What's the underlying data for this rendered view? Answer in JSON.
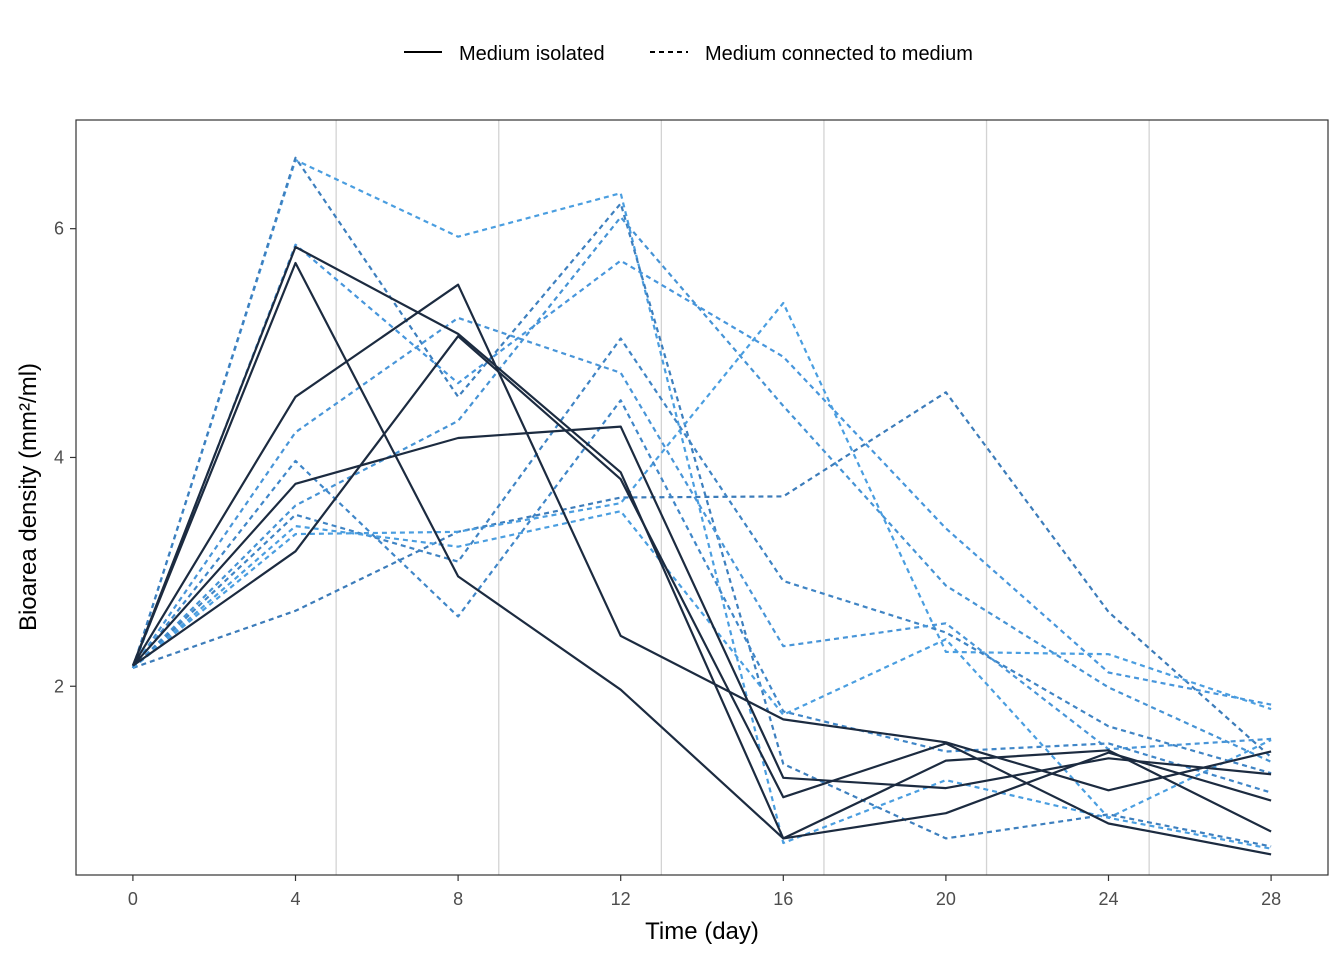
{
  "chart_data": {
    "type": "line",
    "title": "",
    "xlabel": "Time (day)",
    "ylabel": "Bioarea density (mm²/ml)",
    "x": [
      0,
      4,
      8,
      12,
      16,
      20,
      24,
      28
    ],
    "xticks": [
      "0",
      "4",
      "8",
      "12",
      "16",
      "20",
      "24",
      "28"
    ],
    "yticks": [
      "2",
      "4",
      "6"
    ],
    "xlim": [
      -1.4,
      29.4
    ],
    "ylim": [
      0.35,
      6.95
    ],
    "vlines": [
      5,
      9,
      13,
      17,
      21,
      25
    ],
    "legend": {
      "position": "top",
      "entries": [
        {
          "label": "Medium isolated",
          "linetype": "solid"
        },
        {
          "label": "Medium connected to medium",
          "linetype": "dashed"
        }
      ]
    },
    "series": [
      {
        "name": "Medium isolated 1",
        "group": "Medium isolated",
        "color": "#1c2b40",
        "dashed": false,
        "values": [
          2.18,
          5.7,
          2.96,
          1.97,
          0.67,
          0.89,
          1.42,
          1.0
        ]
      },
      {
        "name": "Medium isolated 2",
        "group": "Medium isolated",
        "color": "#1c2b40",
        "dashed": false,
        "values": [
          2.18,
          3.77,
          4.17,
          4.27,
          1.2,
          1.11,
          1.37,
          1.23
        ]
      },
      {
        "name": "Medium isolated 3",
        "group": "Medium isolated",
        "color": "#1c2b40",
        "dashed": false,
        "values": [
          2.18,
          4.53,
          5.51,
          2.44,
          1.71,
          1.51,
          1.09,
          1.43
        ]
      },
      {
        "name": "Medium isolated 4",
        "group": "Medium isolated",
        "color": "#1c2b40",
        "dashed": false,
        "values": [
          2.18,
          5.84,
          5.08,
          3.87,
          0.67,
          1.35,
          1.44,
          0.73
        ]
      },
      {
        "name": "Medium isolated 5",
        "group": "Medium isolated",
        "color": "#1c2b40",
        "dashed": false,
        "values": [
          2.18,
          3.18,
          5.06,
          3.81,
          1.03,
          1.5,
          0.8,
          0.53
        ]
      },
      {
        "name": "Medium connected 1",
        "group": "Medium connected to medium",
        "color": "#4a9ee0",
        "dashed": true,
        "values": [
          2.16,
          6.6,
          5.93,
          6.31,
          0.63,
          1.18,
          0.85,
          1.53
        ]
      },
      {
        "name": "Medium connected 2",
        "group": "Medium connected to medium",
        "color": "#3d7fbe",
        "dashed": true,
        "values": [
          2.16,
          6.62,
          4.53,
          6.22,
          1.32,
          0.67,
          0.88,
          0.6
        ]
      },
      {
        "name": "Medium connected 3",
        "group": "Medium connected to medium",
        "color": "#4796dc",
        "dashed": true,
        "values": [
          2.16,
          5.86,
          4.65,
          5.72,
          4.88,
          3.38,
          2.12,
          1.84
        ]
      },
      {
        "name": "Medium connected 4",
        "group": "Medium connected to medium",
        "color": "#4593d5",
        "dashed": true,
        "values": [
          2.16,
          3.58,
          4.32,
          6.1,
          4.45,
          2.88,
          1.99,
          1.34
        ]
      },
      {
        "name": "Medium connected 5",
        "group": "Medium connected to medium",
        "color": "#3c7cba",
        "dashed": true,
        "values": [
          2.16,
          2.66,
          3.35,
          3.65,
          3.66,
          4.57,
          2.65,
          1.38
        ]
      },
      {
        "name": "Medium connected 6",
        "group": "Medium connected to medium",
        "color": "#4a9ee0",
        "dashed": true,
        "values": [
          2.16,
          3.33,
          3.35,
          3.6,
          5.35,
          2.3,
          2.28,
          1.8
        ]
      },
      {
        "name": "Medium connected 7",
        "group": "Medium connected to medium",
        "color": "#3f84c4",
        "dashed": true,
        "values": [
          2.16,
          3.5,
          3.09,
          5.04,
          2.92,
          2.47,
          1.65,
          1.24
        ]
      },
      {
        "name": "Medium connected 8",
        "group": "Medium connected to medium",
        "color": "#4895d8",
        "dashed": true,
        "values": [
          2.16,
          4.22,
          5.22,
          4.74,
          2.35,
          2.55,
          1.45,
          1.54
        ]
      },
      {
        "name": "Medium connected 9",
        "group": "Medium connected to medium",
        "color": "#3f86c8",
        "dashed": true,
        "values": [
          2.16,
          3.97,
          2.61,
          4.5,
          1.78,
          1.43,
          1.5,
          1.07
        ]
      },
      {
        "name": "Medium connected 10",
        "group": "Medium connected to medium",
        "color": "#4a9ee0",
        "dashed": true,
        "values": [
          2.16,
          3.4,
          3.22,
          3.53,
          1.75,
          2.41,
          0.85,
          0.58
        ]
      }
    ]
  }
}
